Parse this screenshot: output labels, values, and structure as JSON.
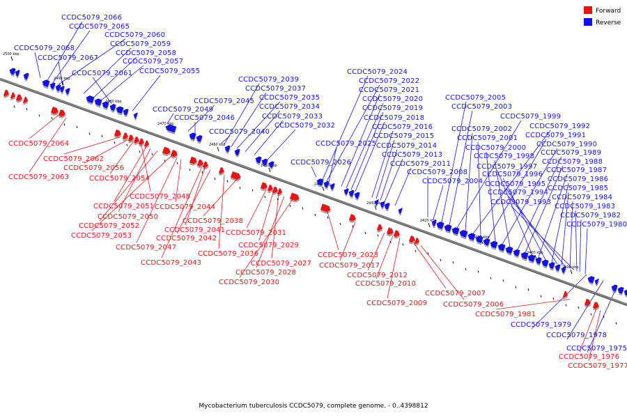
{
  "caption": "Mycobacterium tuberculosis CCDC5079, complete genome. - 0..4398812",
  "legend": [
    {
      "label": "Forward",
      "color": "#ee1111"
    },
    {
      "label": "Reverse",
      "color": "#1111ee"
    }
  ],
  "colors": {
    "forward": "#ee1111",
    "reverse": "#1111ee",
    "backbone": "#808080"
  },
  "ticks": [
    {
      "label": "2500 kbp"
    },
    {
      "label": "2490 kbp"
    },
    {
      "label": "2480 kbp"
    },
    {
      "label": "2470 kbp"
    },
    {
      "label": "2460 kbp"
    },
    {
      "label": "2450 kbp"
    },
    {
      "label": "2440 kbp"
    },
    {
      "label": "2430 kbp"
    },
    {
      "label": "2420 kbp"
    },
    {
      "label": "2410 kbp"
    },
    {
      "label": "2400 kbp"
    },
    {
      "label": "2390 kbp"
    }
  ],
  "genes": [
    {
      "label": "CCDC5079_2066",
      "strand": "reverse"
    },
    {
      "label": "CCDC5079_2065",
      "strand": "reverse"
    },
    {
      "label": "CCDC5079_2060",
      "strand": "reverse"
    },
    {
      "label": "CCDC5079_2059",
      "strand": "reverse"
    },
    {
      "label": "CCDC5079_2068",
      "strand": "reverse"
    },
    {
      "label": "CCDC5079_2058",
      "strand": "reverse"
    },
    {
      "label": "CCDC5079_2067",
      "strand": "reverse"
    },
    {
      "label": "CCDC5079_2057",
      "strand": "reverse"
    },
    {
      "label": "CCDC5079_2061",
      "strand": "reverse"
    },
    {
      "label": "CCDC5079_2055",
      "strand": "reverse"
    },
    {
      "label": "CCDC5079_2039",
      "strand": "reverse"
    },
    {
      "label": "CCDC5079_2037",
      "strand": "reverse"
    },
    {
      "label": "CCDC5079_2035",
      "strand": "reverse"
    },
    {
      "label": "CCDC5079_2045",
      "strand": "reverse"
    },
    {
      "label": "CCDC5079_2034",
      "strand": "reverse"
    },
    {
      "label": "CCDC5079_2049",
      "strand": "reverse"
    },
    {
      "label": "CCDC5079_2033",
      "strand": "reverse"
    },
    {
      "label": "CCDC5079_2046",
      "strand": "reverse"
    },
    {
      "label": "CCDC5079_2032",
      "strand": "reverse"
    },
    {
      "label": "CCDC5079_2040",
      "strand": "reverse"
    },
    {
      "label": "CCDC5079_2026",
      "strand": "reverse"
    },
    {
      "label": "CCDC5079_2024",
      "strand": "reverse"
    },
    {
      "label": "CCDC5079_2022",
      "strand": "reverse"
    },
    {
      "label": "CCDC5079_2021",
      "strand": "reverse"
    },
    {
      "label": "CCDC5079_2020",
      "strand": "reverse"
    },
    {
      "label": "CCDC5079_2019",
      "strand": "reverse"
    },
    {
      "label": "CCDC5079_2018",
      "strand": "reverse"
    },
    {
      "label": "CCDC5079_2016",
      "strand": "reverse"
    },
    {
      "label": "CCDC5079_2015",
      "strand": "reverse"
    },
    {
      "label": "CCDC5079_2025",
      "strand": "reverse"
    },
    {
      "label": "CCDC5079_2014",
      "strand": "reverse"
    },
    {
      "label": "CCDC5079_2013",
      "strand": "reverse"
    },
    {
      "label": "CCDC5079_2011",
      "strand": "reverse"
    },
    {
      "label": "CCDC5079_2008",
      "strand": "reverse"
    },
    {
      "label": "CCDC5079_2004",
      "strand": "reverse"
    },
    {
      "label": "CCDC5079_2005",
      "strand": "reverse"
    },
    {
      "label": "CCDC5079_2003",
      "strand": "reverse"
    },
    {
      "label": "CCDC5079_1999",
      "strand": "reverse"
    },
    {
      "label": "CCDC5079_2002",
      "strand": "reverse"
    },
    {
      "label": "CCDC5079_1992",
      "strand": "reverse"
    },
    {
      "label": "CCDC5079_2001",
      "strand": "reverse"
    },
    {
      "label": "CCDC5079_1991",
      "strand": "reverse"
    },
    {
      "label": "CCDC5079_2000",
      "strand": "reverse"
    },
    {
      "label": "CCDC5079_1990",
      "strand": "reverse"
    },
    {
      "label": "CCDC5079_1998",
      "strand": "reverse"
    },
    {
      "label": "CCDC5079_1989",
      "strand": "reverse"
    },
    {
      "label": "CCDC5079_1988",
      "strand": "reverse"
    },
    {
      "label": "CCDC5079_1997",
      "strand": "reverse"
    },
    {
      "label": "CCDC5079_1987",
      "strand": "reverse"
    },
    {
      "label": "CCDC5079_1996",
      "strand": "reverse"
    },
    {
      "label": "CCDC5079_1986",
      "strand": "reverse"
    },
    {
      "label": "CCDC5079_1995",
      "strand": "reverse"
    },
    {
      "label": "CCDC5079_1985",
      "strand": "reverse"
    },
    {
      "label": "CCDC5079_1994",
      "strand": "reverse"
    },
    {
      "label": "CCDC5079_1984",
      "strand": "reverse"
    },
    {
      "label": "CCDC5079_1993",
      "strand": "reverse"
    },
    {
      "label": "CCDC5079_1983",
      "strand": "reverse"
    },
    {
      "label": "CCDC5079_1982",
      "strand": "reverse"
    },
    {
      "label": "CCDC5079_1980",
      "strand": "reverse"
    },
    {
      "label": "CCDC5079_1979",
      "strand": "reverse"
    },
    {
      "label": "CCDC5079_1978",
      "strand": "reverse"
    },
    {
      "label": "CCDC5079_1975",
      "strand": "reverse"
    },
    {
      "label": "CCDC5079_2064",
      "strand": "forward"
    },
    {
      "label": "CCDC5079_2062",
      "strand": "forward"
    },
    {
      "label": "CCDC5079_2056",
      "strand": "forward"
    },
    {
      "label": "CCDC5079_2063",
      "strand": "forward"
    },
    {
      "label": "CCDC5079_2054",
      "strand": "forward"
    },
    {
      "label": "CCDC5079_2048",
      "strand": "forward"
    },
    {
      "label": "CCDC5079_2051",
      "strand": "forward"
    },
    {
      "label": "CCDC5079_2044",
      "strand": "forward"
    },
    {
      "label": "CCDC5079_2050",
      "strand": "forward"
    },
    {
      "label": "CCDC5079_2038",
      "strand": "forward"
    },
    {
      "label": "CCDC5079_2052",
      "strand": "forward"
    },
    {
      "label": "CCDC5079_2041",
      "strand": "forward"
    },
    {
      "label": "CCDC5079_2031",
      "strand": "forward"
    },
    {
      "label": "CCDC5079_2053",
      "strand": "forward"
    },
    {
      "label": "CCDC5079_2042",
      "strand": "forward"
    },
    {
      "label": "CCDC5079_2029",
      "strand": "forward"
    },
    {
      "label": "CCDC5079_2047",
      "strand": "forward"
    },
    {
      "label": "CCDC5079_2036",
      "strand": "forward"
    },
    {
      "label": "CCDC5079_2023",
      "strand": "forward"
    },
    {
      "label": "CCDC5079_2043",
      "strand": "forward"
    },
    {
      "label": "CCDC5079_2027",
      "strand": "forward"
    },
    {
      "label": "CCDC5079_2017",
      "strand": "forward"
    },
    {
      "label": "CCDC5079_2028",
      "strand": "forward"
    },
    {
      "label": "CCDC5079_2012",
      "strand": "forward"
    },
    {
      "label": "CCDC5079_2030",
      "strand": "forward"
    },
    {
      "label": "CCDC5079_2010",
      "strand": "forward"
    },
    {
      "label": "CCDC5079_2007",
      "strand": "forward"
    },
    {
      "label": "CCDC5079_2009",
      "strand": "forward"
    },
    {
      "label": "CCDC5079_2006",
      "strand": "forward"
    },
    {
      "label": "CCDC5079_1981",
      "strand": "forward"
    },
    {
      "label": "CCDC5079_1976",
      "strand": "forward"
    },
    {
      "label": "CCDC5079_1977",
      "strand": "forward"
    }
  ]
}
